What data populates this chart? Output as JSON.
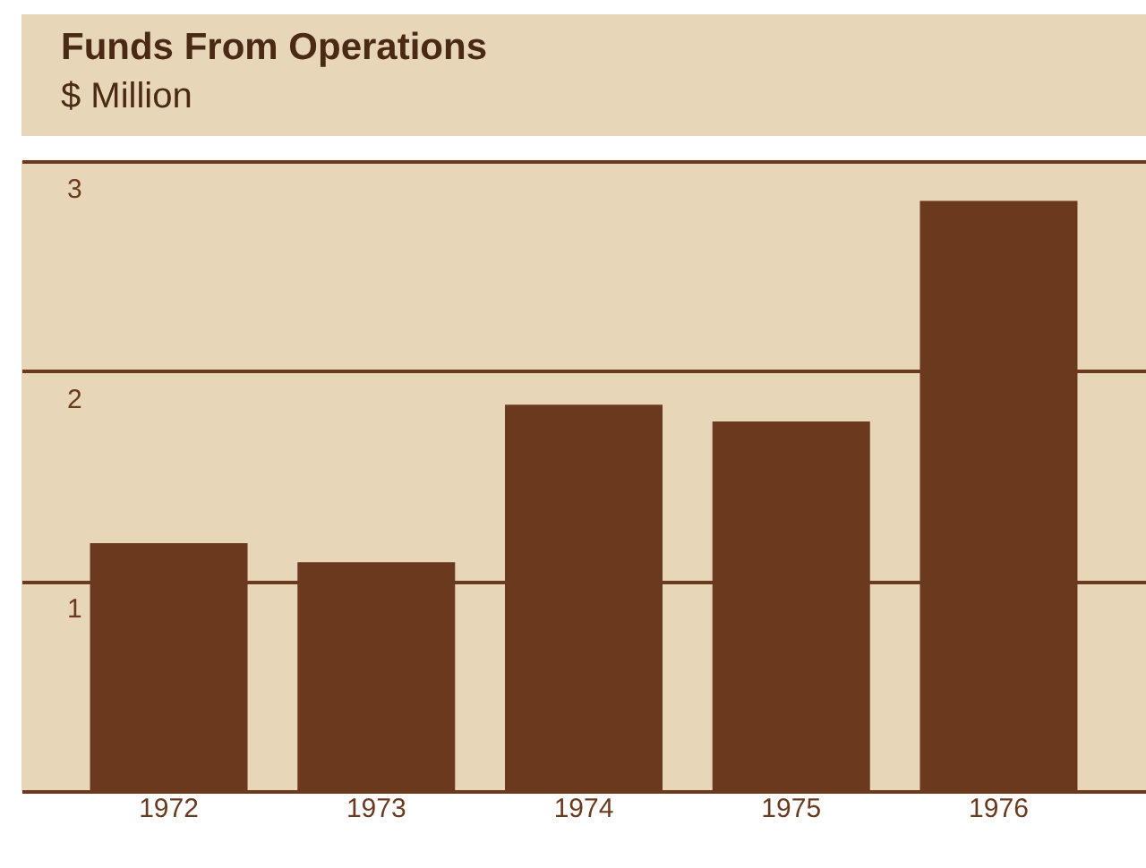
{
  "chart_data": {
    "type": "bar",
    "title": "Funds From Operations",
    "subtitle": "$ Million",
    "categories": [
      "1972",
      "1973",
      "1974",
      "1975",
      "1976"
    ],
    "values": [
      1.18,
      1.09,
      1.84,
      1.76,
      2.81
    ],
    "color": "#6b3a1e",
    "ylim": [
      0,
      3
    ],
    "yticks": [
      1,
      2,
      3
    ],
    "grid": "y"
  }
}
